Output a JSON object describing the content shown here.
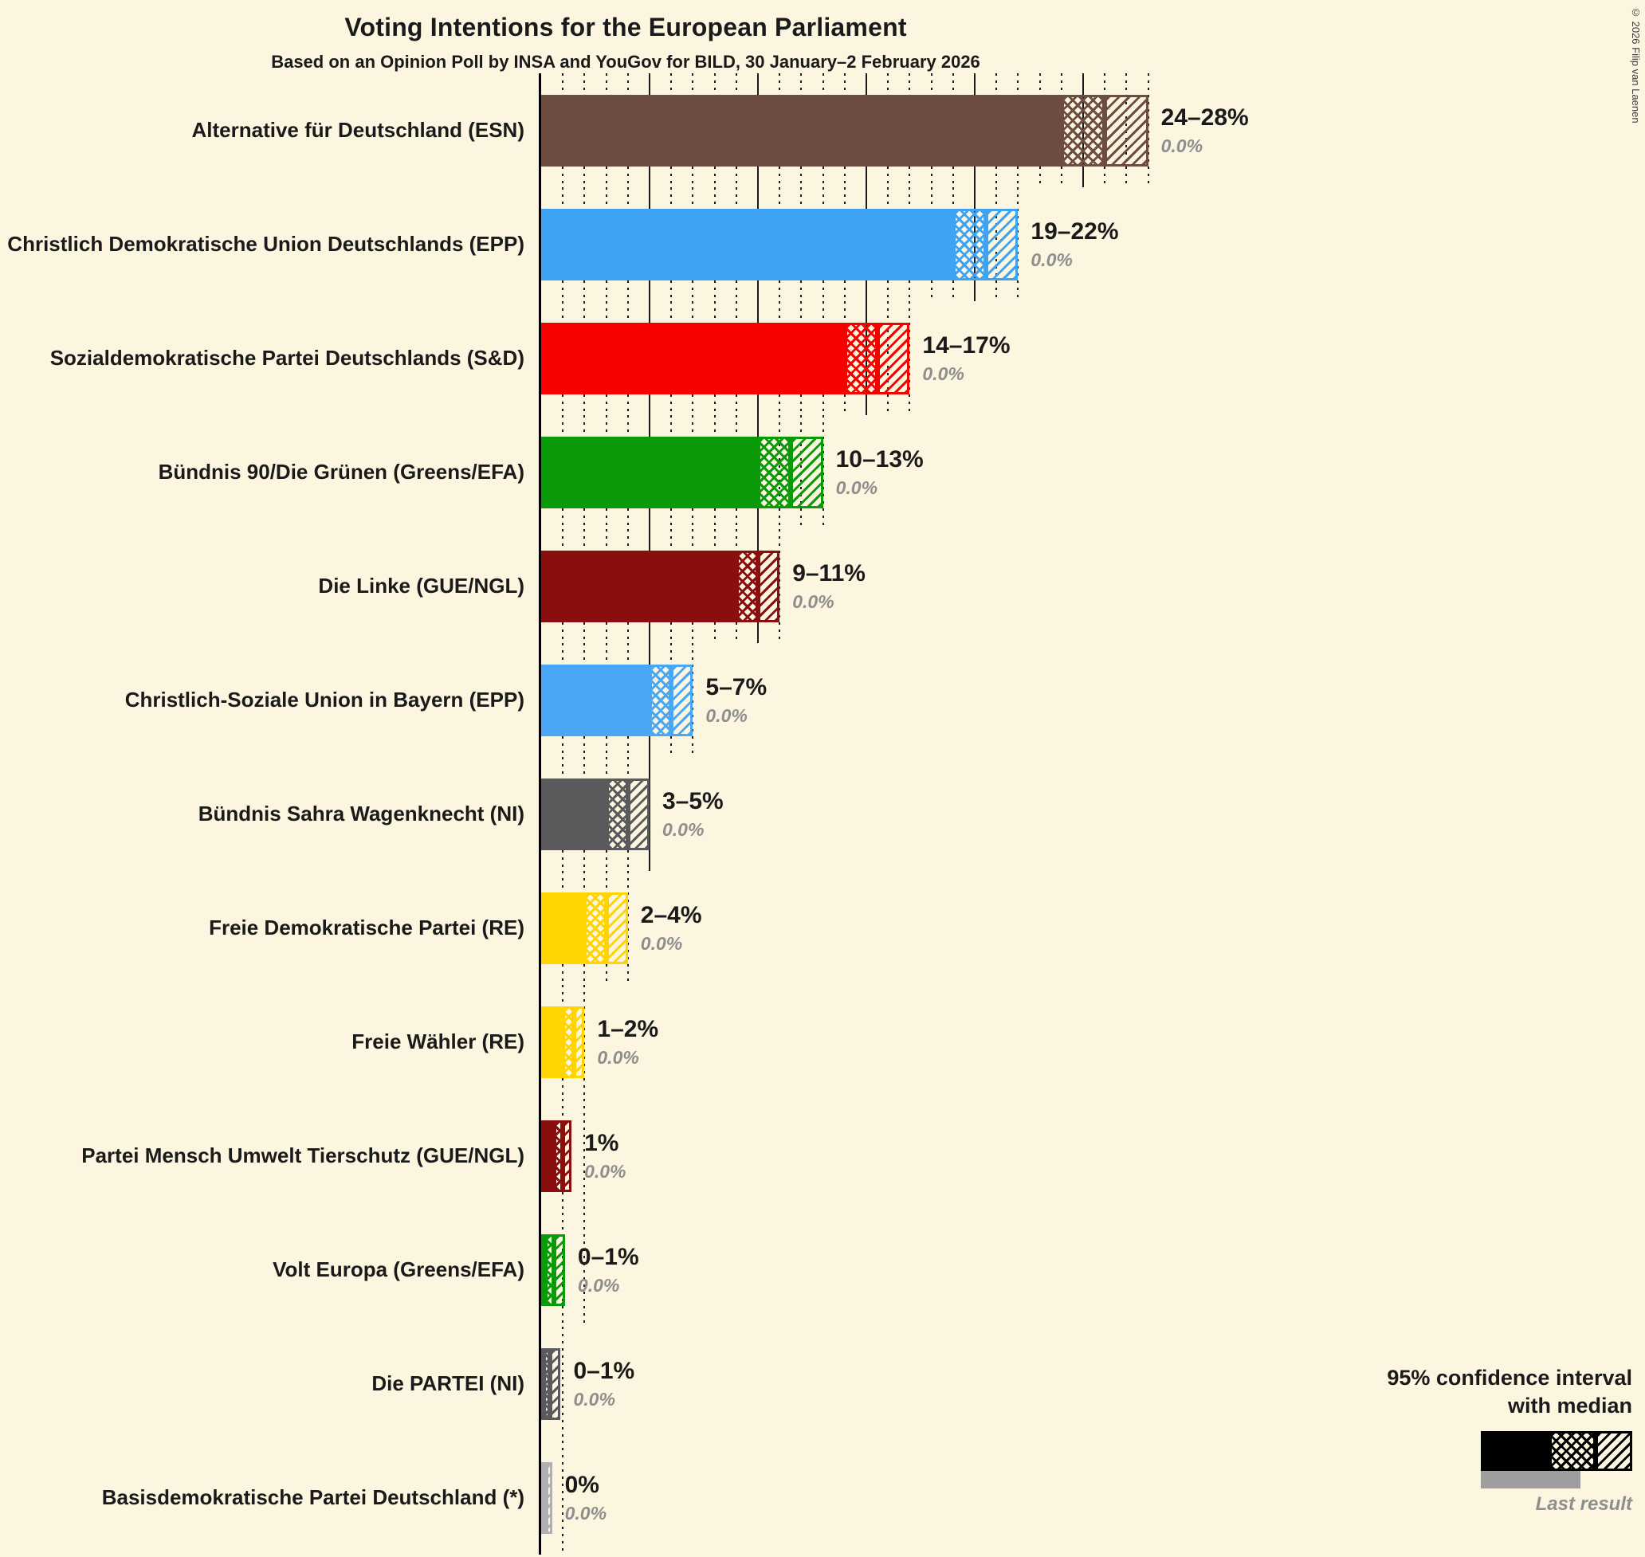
{
  "title": "Voting Intentions for the European Parliament",
  "subtitle": "Based on an Opinion Poll by INSA and YouGov for BILD, 30 January–2 February 2026",
  "copyright": "© 2026 Filip van Laenen",
  "legend": {
    "line1": "95% confidence interval",
    "line2": "with median",
    "last_result_label": "Last result"
  },
  "colors": {
    "background": "#FCF6E0",
    "text": "#1A1A1A",
    "muted_text": "#8E8E8E",
    "axis": "#000000",
    "legend_bar": "#000000",
    "last_result_bar": "#9E9E9E"
  },
  "chart_data": {
    "type": "bar",
    "orientation": "horizontal",
    "unit": "%",
    "x_axis": {
      "min": 0,
      "max": 28,
      "gridline_step": 1,
      "major_step": 5
    },
    "bars": [
      {
        "label": "Alternative für Deutschland (ESN)",
        "low": 24,
        "median": 26,
        "high": 28,
        "range_label": "24–28%",
        "last_result": "0.0%",
        "color": "#6D4C41"
      },
      {
        "label": "Christlich Demokratische Union Deutschlands (EPP)",
        "low": 19,
        "median": 20.5,
        "high": 22,
        "range_label": "19–22%",
        "last_result": "0.0%",
        "color": "#3FA3F3"
      },
      {
        "label": "Sozialdemokratische Partei Deutschlands (S&D)",
        "low": 14,
        "median": 15.5,
        "high": 17,
        "range_label": "14–17%",
        "last_result": "0.0%",
        "color": "#F80000"
      },
      {
        "label": "Bündnis 90/Die Grünen (Greens/EFA)",
        "low": 10,
        "median": 11.5,
        "high": 13,
        "range_label": "10–13%",
        "last_result": "0.0%",
        "color": "#0A9A0A"
      },
      {
        "label": "Die Linke (GUE/NGL)",
        "low": 9,
        "median": 10,
        "high": 11,
        "range_label": "9–11%",
        "last_result": "0.0%",
        "color": "#8B0E0E"
      },
      {
        "label": "Christlich-Soziale Union in Bayern (EPP)",
        "low": 5,
        "median": 6,
        "high": 7,
        "range_label": "5–7%",
        "last_result": "0.0%",
        "color": "#49A7F5"
      },
      {
        "label": "Bündnis Sahra Wagenknecht (NI)",
        "low": 3,
        "median": 4,
        "high": 5,
        "range_label": "3–5%",
        "last_result": "0.0%",
        "color": "#5A5A5C"
      },
      {
        "label": "Freie Demokratische Partei (RE)",
        "low": 2,
        "median": 3,
        "high": 4,
        "range_label": "2–4%",
        "last_result": "0.0%",
        "color": "#FFD400"
      },
      {
        "label": "Freie Wähler (RE)",
        "low": 1,
        "median": 1.5,
        "high": 2,
        "range_label": "1–2%",
        "last_result": "0.0%",
        "color": "#FFD400"
      },
      {
        "label": "Partei Mensch Umwelt Tierschutz (GUE/NGL)",
        "low": 0.6,
        "median": 1,
        "high": 1.4,
        "range_label": "1%",
        "last_result": "0.0%",
        "color": "#8B0E0E"
      },
      {
        "label": "Volt Europa (Greens/EFA)",
        "low": 0.2,
        "median": 0.6,
        "high": 1.1,
        "range_label": "0–1%",
        "last_result": "0.0%",
        "color": "#0A9A0A"
      },
      {
        "label": "Die PARTEI (NI)",
        "low": 0.1,
        "median": 0.4,
        "high": 0.9,
        "range_label": "0–1%",
        "last_result": "0.0%",
        "color": "#5A5A5C"
      },
      {
        "label": "Basisdemokratische Partei Deutschland (*)",
        "low": 0,
        "median": 0.2,
        "high": 0.5,
        "range_label": "0%",
        "last_result": "0.0%",
        "color": "#B0B0B0"
      }
    ]
  }
}
